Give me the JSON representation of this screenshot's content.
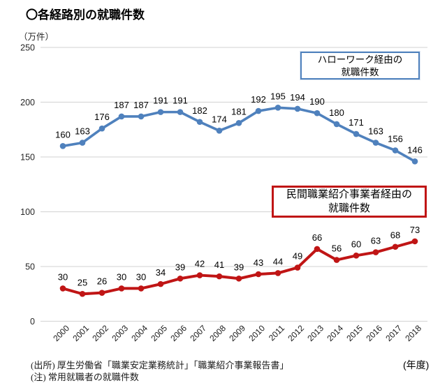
{
  "title": "〇各経路別の就職件数",
  "y_unit": "（万件）",
  "x_unit": "(年度)",
  "legend_hellowork": {
    "line1": "ハローワーク経由の",
    "line2": "就職件数"
  },
  "legend_private": {
    "line1": "民間職業紹介事業者経由の",
    "line2": "就職件数"
  },
  "footer": {
    "source": "(出所) 厚生労働省「職業安定業務統計」「職業紹介事業報告書」",
    "note": "(注) 常用就職者の就職件数"
  },
  "colors": {
    "hellowork": "#4F81BD",
    "private": "#C01515",
    "grid": "#D9D9D9",
    "tick_text": "#262626",
    "label_text": "#000000"
  },
  "chart_data": {
    "type": "line",
    "title": "〇各経路別の就職件数",
    "xlabel": "(年度)",
    "ylabel": "（万件）",
    "ylim": [
      0,
      250
    ],
    "yticks": [
      0,
      50,
      100,
      150,
      200,
      250
    ],
    "grid": true,
    "data_labels": true,
    "legend_position": "inline-boxes",
    "categories": [
      "2000",
      "2001",
      "2002",
      "2003",
      "2004",
      "2005",
      "2006",
      "2007",
      "2008",
      "2009",
      "2010",
      "2011",
      "2012",
      "2013",
      "2014",
      "2015",
      "2016",
      "2017",
      "2018"
    ],
    "series": [
      {
        "name": "ハローワーク経由の就職件数",
        "color": "#4F81BD",
        "values": [
          160,
          163,
          176,
          187,
          187,
          191,
          191,
          182,
          174,
          181,
          192,
          195,
          194,
          190,
          180,
          171,
          163,
          156,
          146
        ]
      },
      {
        "name": "民間職業紹介事業者経由の就職件数",
        "color": "#C01515",
        "values": [
          30,
          25,
          26,
          30,
          30,
          34,
          39,
          42,
          41,
          39,
          43,
          44,
          49,
          66,
          56,
          60,
          63,
          68,
          73
        ]
      }
    ]
  }
}
